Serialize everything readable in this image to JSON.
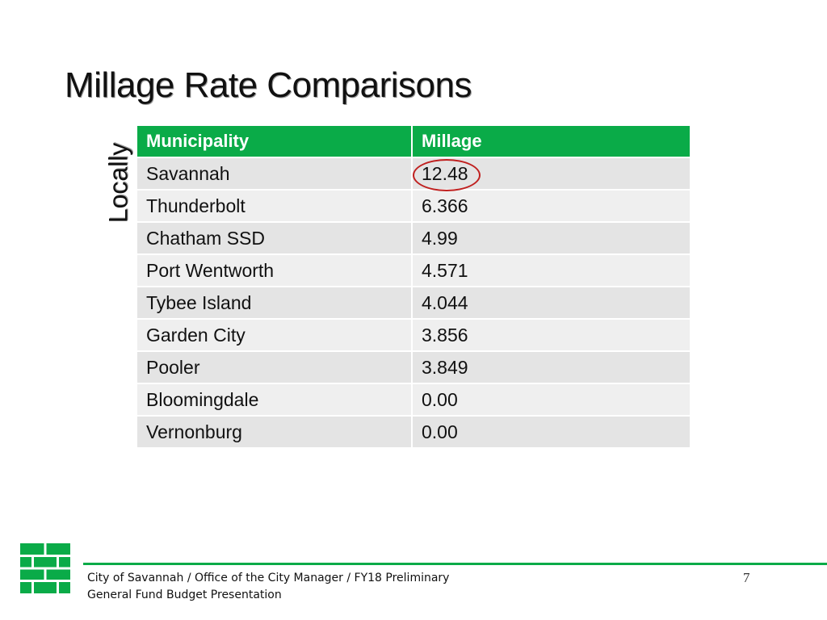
{
  "title": "Millage Rate Comparisons",
  "side_label": "Locally",
  "table": {
    "headers": [
      "Municipality",
      "Millage"
    ],
    "rows": [
      {
        "municipality": "Savannah",
        "millage": "12.48",
        "highlighted": true
      },
      {
        "municipality": "Thunderbolt",
        "millage": "6.366"
      },
      {
        "municipality": "Chatham SSD",
        "millage": "4.99"
      },
      {
        "municipality": "Port Wentworth",
        "millage": "4.571"
      },
      {
        "municipality": "Tybee Island",
        "millage": "4.044"
      },
      {
        "municipality": "Garden City",
        "millage": "3.856"
      },
      {
        "municipality": "Pooler",
        "millage": "3.849"
      },
      {
        "municipality": "Bloomingdale",
        "millage": "0.00"
      },
      {
        "municipality": "Vernonburg",
        "millage": "0.00"
      }
    ]
  },
  "footer": {
    "line1": "City of Savannah / Office of the City Manager / FY18 Preliminary",
    "line2": "General Fund Budget Presentation",
    "page_number": "7"
  },
  "logo_icon": "brick-wall-logo-icon",
  "colors": {
    "brand_green": "#0aab48",
    "highlight_red": "#c0201f",
    "row_gray": "#e4e4e4",
    "row_gray_alt": "#efefef"
  }
}
